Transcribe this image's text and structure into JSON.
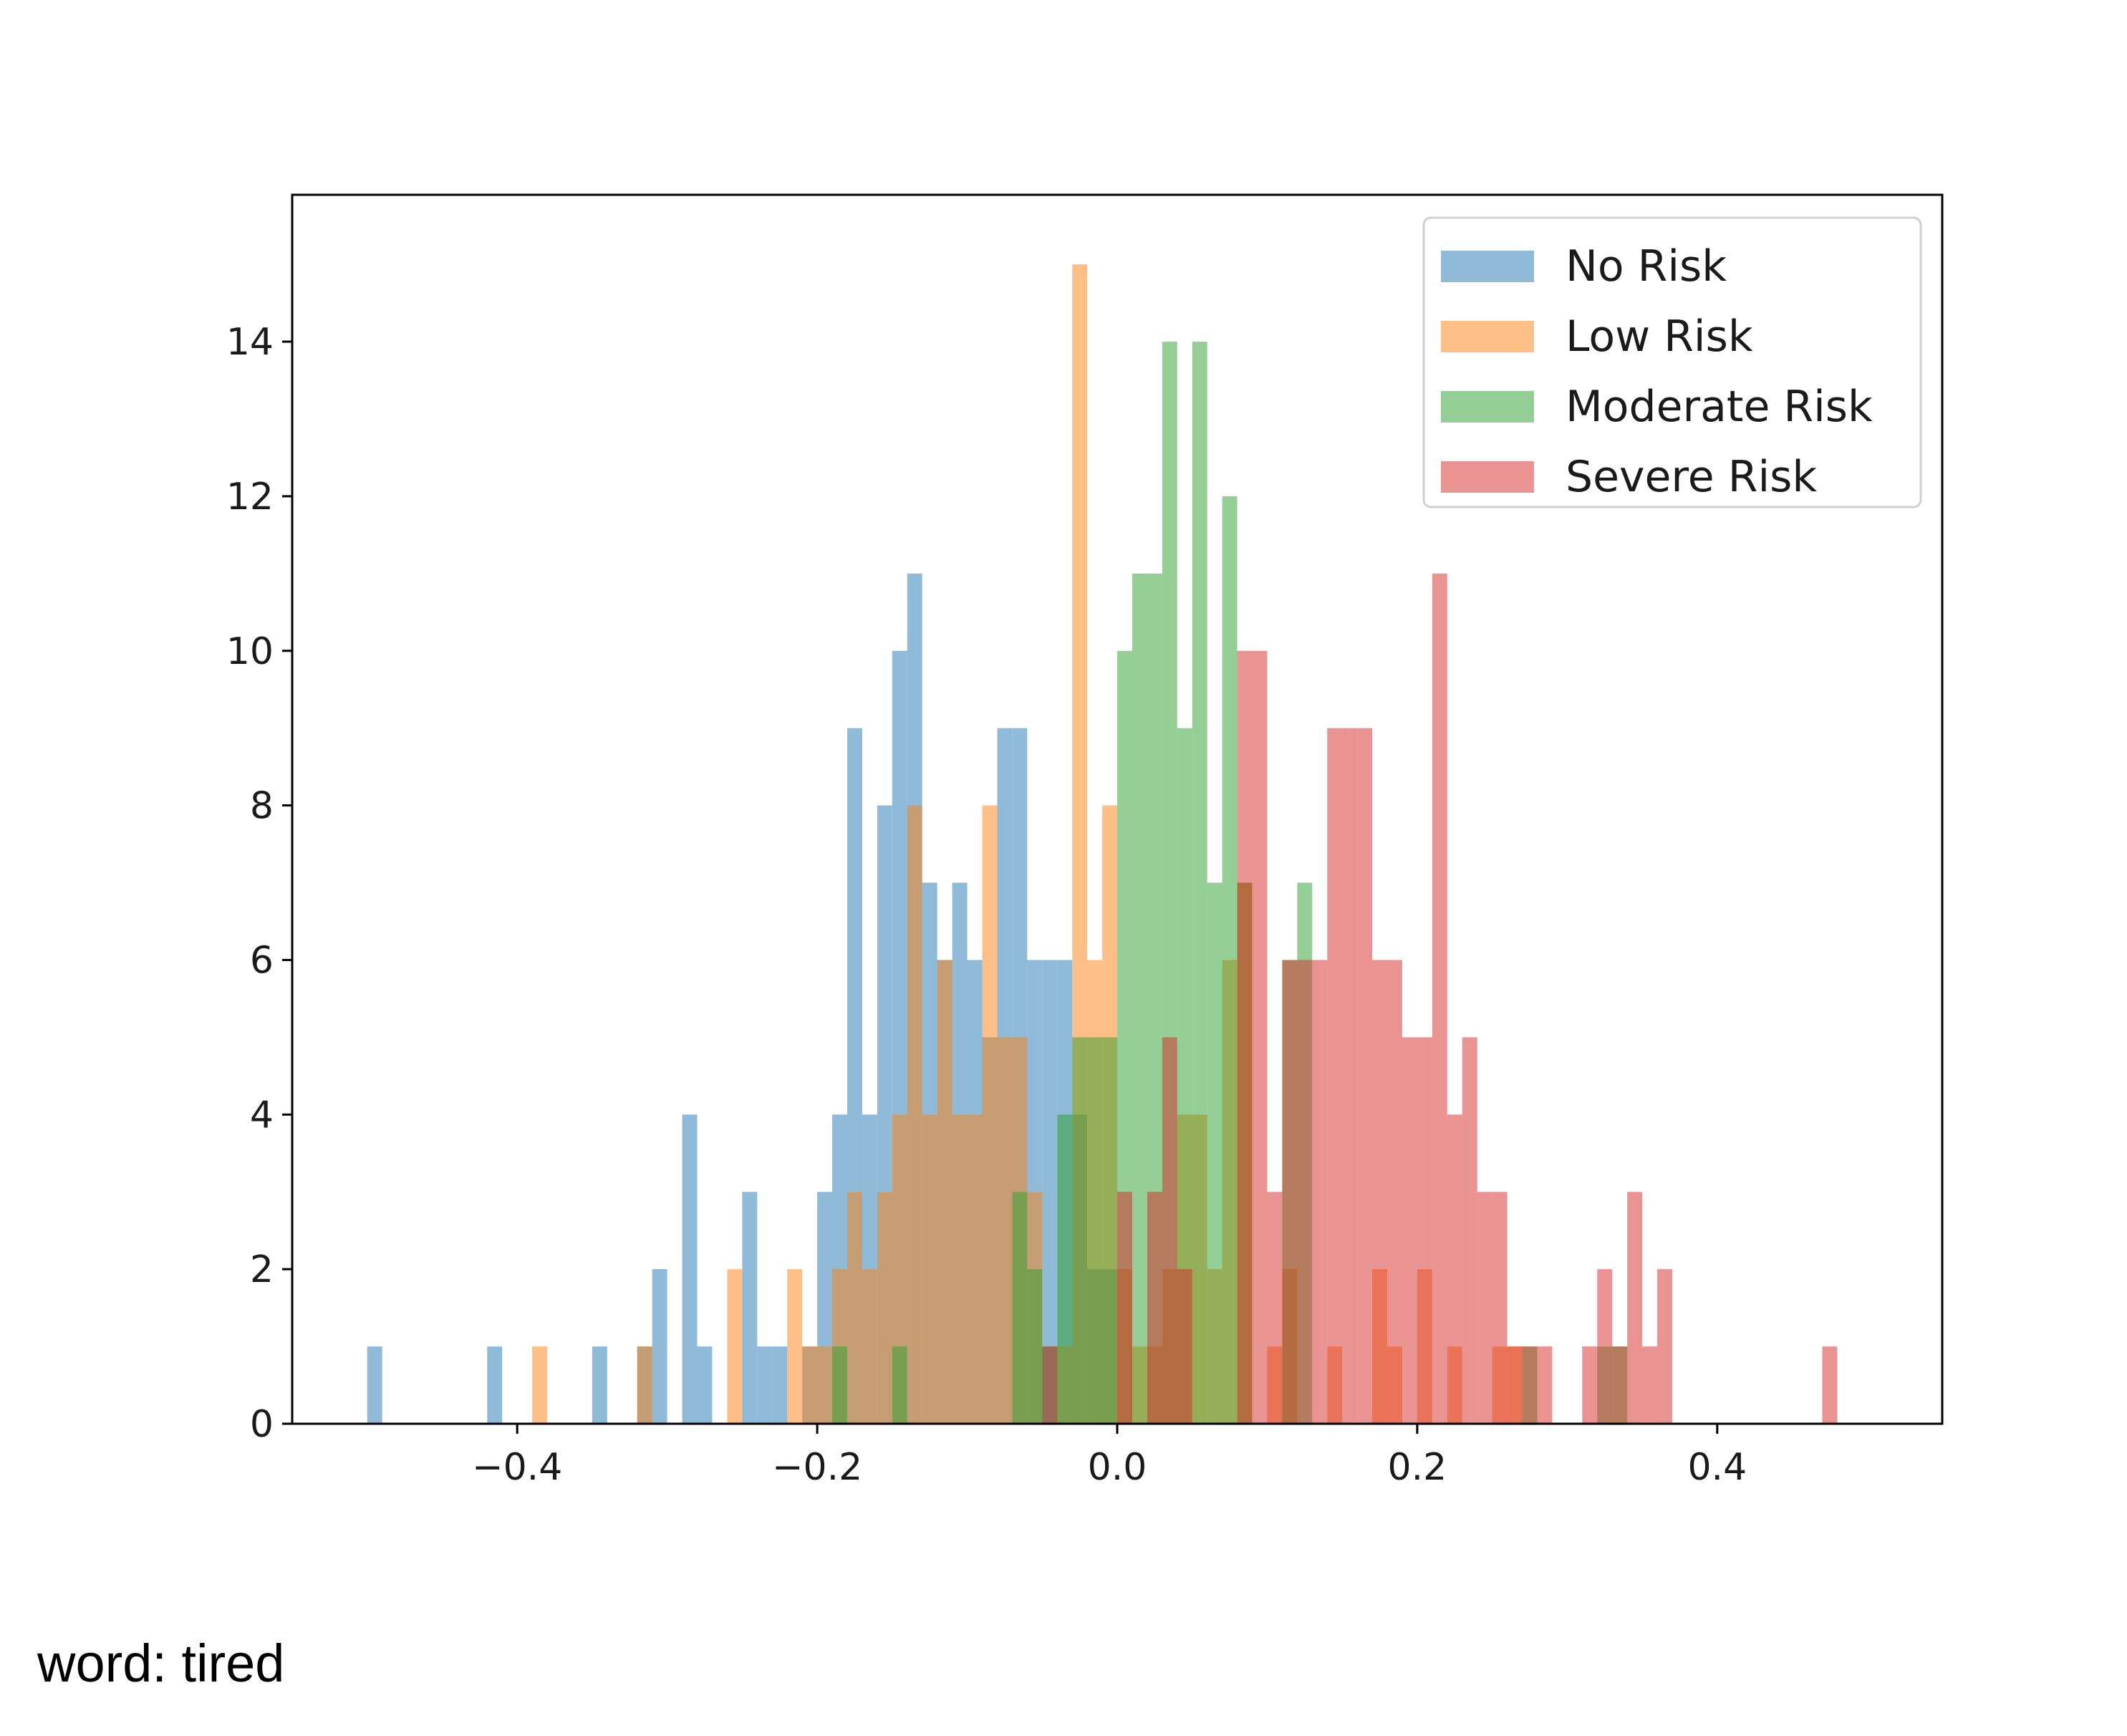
{
  "caption": "word: tired",
  "chart_data": {
    "type": "bar",
    "subtype": "overlapping histogram",
    "bin_width": 0.01,
    "xlim": [
      -0.55,
      0.55
    ],
    "ylim": [
      0,
      15.9
    ],
    "x_ticks": [
      -0.4,
      -0.2,
      0.0,
      0.2,
      0.4
    ],
    "x_tick_labels": [
      "−0.4",
      "−0.2",
      "0.0",
      "0.2",
      "0.4"
    ],
    "y_ticks": [
      0,
      2,
      4,
      6,
      8,
      10,
      12,
      14
    ],
    "y_tick_labels": [
      "0",
      "2",
      "4",
      "6",
      "8",
      "10",
      "12",
      "14"
    ],
    "grid": false,
    "legend_position": "top-right",
    "opacity": 0.5,
    "series": [
      {
        "name": "No Risk",
        "color": "#1f77b4",
        "bins": [
          [
            -0.5,
            1
          ],
          [
            -0.42,
            1
          ],
          [
            -0.35,
            1
          ],
          [
            -0.32,
            1
          ],
          [
            -0.31,
            2
          ],
          [
            -0.29,
            4
          ],
          [
            -0.28,
            1
          ],
          [
            -0.25,
            3
          ],
          [
            -0.24,
            1
          ],
          [
            -0.23,
            1
          ],
          [
            -0.21,
            1
          ],
          [
            -0.2,
            3
          ],
          [
            -0.19,
            4
          ],
          [
            -0.18,
            9
          ],
          [
            -0.17,
            4
          ],
          [
            -0.16,
            8
          ],
          [
            -0.15,
            10
          ],
          [
            -0.14,
            11
          ],
          [
            -0.13,
            7
          ],
          [
            -0.12,
            6
          ],
          [
            -0.11,
            7
          ],
          [
            -0.1,
            6
          ],
          [
            -0.09,
            5
          ],
          [
            -0.08,
            9
          ],
          [
            -0.07,
            9
          ],
          [
            -0.06,
            6
          ],
          [
            -0.05,
            6
          ],
          [
            -0.04,
            6
          ],
          [
            -0.03,
            4
          ],
          [
            -0.02,
            2
          ],
          [
            -0.01,
            2
          ]
        ]
      },
      {
        "name": "Low Risk",
        "color": "#ff7f0e",
        "bins": [
          [
            -0.39,
            1
          ],
          [
            -0.32,
            1
          ],
          [
            -0.26,
            2
          ],
          [
            -0.22,
            2
          ],
          [
            -0.21,
            1
          ],
          [
            -0.2,
            1
          ],
          [
            -0.19,
            2
          ],
          [
            -0.18,
            3
          ],
          [
            -0.17,
            2
          ],
          [
            -0.16,
            3
          ],
          [
            -0.15,
            4
          ],
          [
            -0.14,
            8
          ],
          [
            -0.13,
            4
          ],
          [
            -0.12,
            6
          ],
          [
            -0.11,
            4
          ],
          [
            -0.1,
            4
          ],
          [
            -0.09,
            8
          ],
          [
            -0.08,
            5
          ],
          [
            -0.07,
            5
          ],
          [
            -0.06,
            3
          ],
          [
            -0.04,
            1
          ],
          [
            -0.03,
            15
          ],
          [
            -0.02,
            6
          ],
          [
            -0.01,
            8
          ],
          [
            0.0,
            2
          ],
          [
            0.01,
            1
          ],
          [
            0.02,
            1
          ],
          [
            0.03,
            2
          ],
          [
            0.04,
            4
          ],
          [
            0.05,
            4
          ],
          [
            0.06,
            2
          ],
          [
            0.07,
            6
          ],
          [
            0.08,
            7
          ],
          [
            0.1,
            1
          ],
          [
            0.11,
            2
          ],
          [
            0.14,
            1
          ],
          [
            0.17,
            2
          ],
          [
            0.18,
            1
          ],
          [
            0.2,
            2
          ],
          [
            0.22,
            1
          ],
          [
            0.25,
            1
          ],
          [
            0.26,
            1
          ]
        ]
      },
      {
        "name": "Moderate Risk",
        "color": "#2ca02c",
        "bins": [
          [
            -0.19,
            1
          ],
          [
            -0.15,
            1
          ],
          [
            -0.07,
            3
          ],
          [
            -0.06,
            2
          ],
          [
            -0.05,
            1
          ],
          [
            -0.04,
            4
          ],
          [
            -0.03,
            5
          ],
          [
            -0.02,
            5
          ],
          [
            -0.01,
            5
          ],
          [
            0.0,
            10
          ],
          [
            0.01,
            11
          ],
          [
            0.02,
            11
          ],
          [
            0.03,
            14
          ],
          [
            0.04,
            9
          ],
          [
            0.05,
            14
          ],
          [
            0.06,
            7
          ],
          [
            0.07,
            12
          ],
          [
            0.08,
            7
          ],
          [
            0.11,
            6
          ],
          [
            0.12,
            7
          ],
          [
            0.27,
            1
          ],
          [
            0.32,
            1
          ],
          [
            0.33,
            1
          ]
        ]
      },
      {
        "name": "Severe Risk",
        "color": "#d62728",
        "bins": [
          [
            -0.05,
            1
          ],
          [
            0.0,
            3
          ],
          [
            0.02,
            3
          ],
          [
            0.03,
            5
          ],
          [
            0.04,
            2
          ],
          [
            0.08,
            10
          ],
          [
            0.09,
            10
          ],
          [
            0.1,
            3
          ],
          [
            0.11,
            6
          ],
          [
            0.12,
            6
          ],
          [
            0.13,
            6
          ],
          [
            0.14,
            9
          ],
          [
            0.15,
            9
          ],
          [
            0.16,
            9
          ],
          [
            0.17,
            6
          ],
          [
            0.18,
            6
          ],
          [
            0.19,
            5
          ],
          [
            0.2,
            5
          ],
          [
            0.21,
            11
          ],
          [
            0.22,
            4
          ],
          [
            0.23,
            5
          ],
          [
            0.24,
            3
          ],
          [
            0.25,
            3
          ],
          [
            0.26,
            1
          ],
          [
            0.27,
            1
          ],
          [
            0.28,
            1
          ],
          [
            0.31,
            1
          ],
          [
            0.32,
            2
          ],
          [
            0.33,
            1
          ],
          [
            0.34,
            3
          ],
          [
            0.35,
            1
          ],
          [
            0.36,
            2
          ],
          [
            0.47,
            1
          ]
        ]
      }
    ]
  }
}
